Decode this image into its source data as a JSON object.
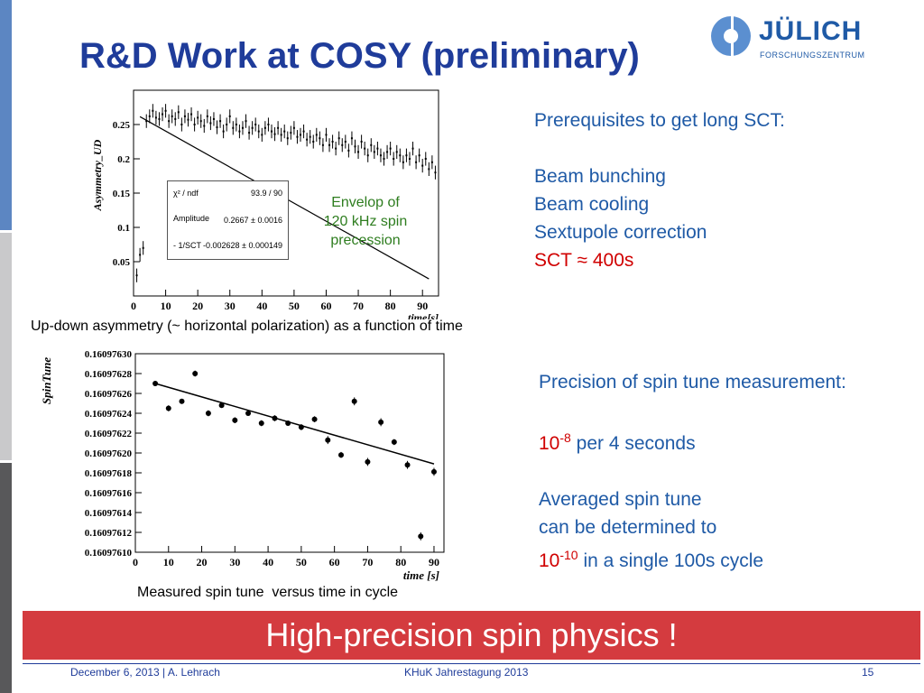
{
  "slide": {
    "title": "R&D Work at COSY (preliminary)",
    "logo": {
      "name": "JÜLICH",
      "subtitle": "FORSCHUNGSZENTRUM"
    },
    "colors": {
      "title": "#1f3c9a",
      "text_blue": "#1f5aa6",
      "highlight_red": "#d00000",
      "banner": "#d43b3f",
      "footer_blue": "#1f3c9a"
    }
  },
  "right_top": {
    "heading": "Prerequisites to get long SCT:",
    "items": [
      "Beam bunching",
      "Beam cooling",
      "Sextupole correction"
    ],
    "sct_prefix": "SCT",
    "sct_symbol": "≈",
    "sct_value": "400s"
  },
  "right_bottom": {
    "heading": "Precision of spin tune measurement:",
    "precision_base": "10",
    "precision_exp": "-8",
    "precision_rest": "per 4 seconds",
    "averaged_line1": "Averaged spin tune",
    "averaged_line2": "can be determined to",
    "averaged_base": "10",
    "averaged_exp": "-10",
    "averaged_rest": "in a single 100s cycle"
  },
  "captions": {
    "top": "Up-down asymmetry (~ horizontal polarization) as a function of time",
    "bottom": "Measured spin tune  versus time in cycle"
  },
  "annotation": {
    "line1": "Envelop of",
    "line2": "120 kHz spin",
    "line3": "precession"
  },
  "fit_box": {
    "chi_label": "χ² / ndf",
    "chi_value": "93.9 / 90",
    "amp_label": "Amplitude",
    "amp_value": "0.2667 ± 0.0016",
    "slope_label": "- 1/SCT",
    "slope_value": "-0.002628 ± 0.000149"
  },
  "banner": "High-precision spin physics !",
  "footer": {
    "left": "December 6, 2013 | A. Lehrach",
    "center": "KHuK Jahrestagung 2013",
    "page": "15"
  },
  "chart_data": [
    {
      "type": "scatter",
      "title": "",
      "xlabel": "time[s]",
      "ylabel": "Asymmetry_UD",
      "xlim": [
        0,
        95
      ],
      "ylim": [
        0,
        0.3
      ],
      "x_ticks": [
        "0",
        "10",
        "20",
        "30",
        "40",
        "50",
        "60",
        "70",
        "80",
        "90"
      ],
      "y_ticks": [
        "0.05",
        "0.1",
        "0.15",
        "0.2",
        "0.25"
      ],
      "fit": {
        "amplitude": 0.2667,
        "slope": -0.002628
      },
      "x": [
        1,
        2,
        3,
        4,
        5,
        6,
        7,
        8,
        9,
        10,
        11,
        12,
        13,
        14,
        15,
        16,
        17,
        18,
        19,
        20,
        21,
        22,
        23,
        24,
        25,
        26,
        27,
        28,
        29,
        30,
        31,
        32,
        33,
        34,
        35,
        36,
        37,
        38,
        39,
        40,
        41,
        42,
        43,
        44,
        45,
        46,
        47,
        48,
        49,
        50,
        51,
        52,
        53,
        54,
        55,
        56,
        57,
        58,
        59,
        60,
        61,
        62,
        63,
        64,
        65,
        66,
        67,
        68,
        69,
        70,
        71,
        72,
        73,
        74,
        75,
        76,
        77,
        78,
        79,
        80,
        81,
        82,
        83,
        84,
        85,
        86,
        87,
        88,
        89,
        90,
        91,
        92,
        93,
        94
      ],
      "y": [
        0.03,
        0.06,
        0.07,
        0.255,
        0.262,
        0.27,
        0.26,
        0.258,
        0.265,
        0.27,
        0.255,
        0.262,
        0.258,
        0.268,
        0.25,
        0.262,
        0.257,
        0.265,
        0.25,
        0.26,
        0.255,
        0.248,
        0.262,
        0.252,
        0.258,
        0.246,
        0.255,
        0.24,
        0.25,
        0.262,
        0.245,
        0.25,
        0.24,
        0.245,
        0.255,
        0.238,
        0.245,
        0.25,
        0.24,
        0.235,
        0.245,
        0.25,
        0.24,
        0.236,
        0.245,
        0.235,
        0.24,
        0.23,
        0.238,
        0.245,
        0.232,
        0.235,
        0.24,
        0.228,
        0.232,
        0.225,
        0.235,
        0.23,
        0.22,
        0.235,
        0.22,
        0.225,
        0.215,
        0.23,
        0.22,
        0.225,
        0.212,
        0.23,
        0.218,
        0.21,
        0.225,
        0.215,
        0.205,
        0.22,
        0.21,
        0.215,
        0.205,
        0.2,
        0.21,
        0.215,
        0.2,
        0.21,
        0.205,
        0.195,
        0.205,
        0.2,
        0.215,
        0.195,
        0.205,
        0.19,
        0.2,
        0.185,
        0.195,
        0.18
      ],
      "yerr": 0.01
    },
    {
      "type": "scatter",
      "title": "",
      "xlabel": "time [s]",
      "ylabel": "SpinTune",
      "xlim": [
        0,
        93
      ],
      "ylim": [
        0.1609761,
        0.1609763
      ],
      "x_ticks": [
        "0",
        "10",
        "20",
        "30",
        "40",
        "50",
        "60",
        "70",
        "80",
        "90"
      ],
      "y_ticks": [
        "0.16097630",
        "0.16097628",
        "0.16097626",
        "0.16097624",
        "0.16097622",
        "0.16097620",
        "0.16097618",
        "0.16097616",
        "0.16097614",
        "0.16097612",
        "0.16097610"
      ],
      "x": [
        6,
        10,
        14,
        18,
        22,
        26,
        30,
        34,
        38,
        42,
        46,
        50,
        54,
        58,
        62,
        66,
        70,
        74,
        78,
        82,
        86,
        90
      ],
      "y": [
        0.16097627,
        0.160976245,
        0.160976252,
        0.16097628,
        0.16097624,
        0.160976248,
        0.160976233,
        0.16097624,
        0.16097623,
        0.160976235,
        0.16097623,
        0.160976226,
        0.160976234,
        0.160976213,
        0.160976198,
        0.160976252,
        0.160976191,
        0.160976231,
        0.160976211,
        0.160976188,
        0.160976116,
        0.160976181
      ],
      "yerr": [
        2.5e-09,
        3e-09,
        2.5e-09,
        3e-09,
        3e-09,
        2.5e-09,
        3e-09,
        2.5e-09,
        3e-09,
        3e-09,
        2.5e-09,
        3e-09,
        3e-09,
        4e-09,
        3e-09,
        4e-09,
        4e-09,
        4e-09,
        3e-09,
        4e-09,
        4e-09,
        4e-09
      ],
      "fit": {
        "x0": 6,
        "y0": 0.16097627,
        "x1": 90,
        "y1": 0.160976189
      }
    }
  ]
}
